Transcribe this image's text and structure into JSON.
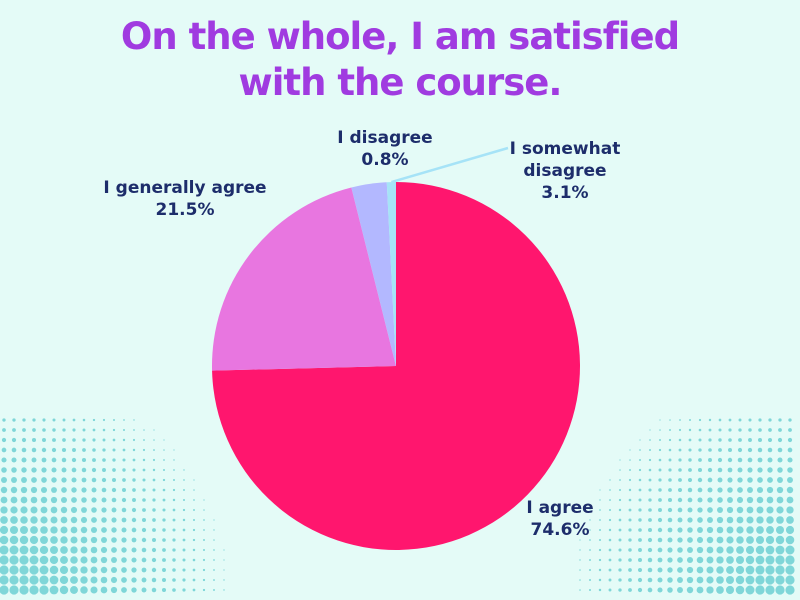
{
  "chart_data": {
    "type": "pie",
    "title_lines": [
      "On the whole, I am satisfied",
      "with the course."
    ],
    "slices": [
      {
        "label": "I agree",
        "percent_text": "74.6%",
        "value": 74.6,
        "color": "#ff166e"
      },
      {
        "label": "I generally agree",
        "percent_text": "21.5%",
        "value": 21.5,
        "color": "#e876e0"
      },
      {
        "label": "I somewhat disagree",
        "label_lines": [
          "I somewhat",
          "disagree"
        ],
        "percent_text": "3.1%",
        "value": 3.1,
        "color": "#b3b8ff"
      },
      {
        "label": "I disagree",
        "percent_text": "0.8%",
        "value": 0.8,
        "color": "#a6e3f7"
      }
    ],
    "background_color": "#e4fbf7",
    "dot_color": "#7fd6d8"
  }
}
